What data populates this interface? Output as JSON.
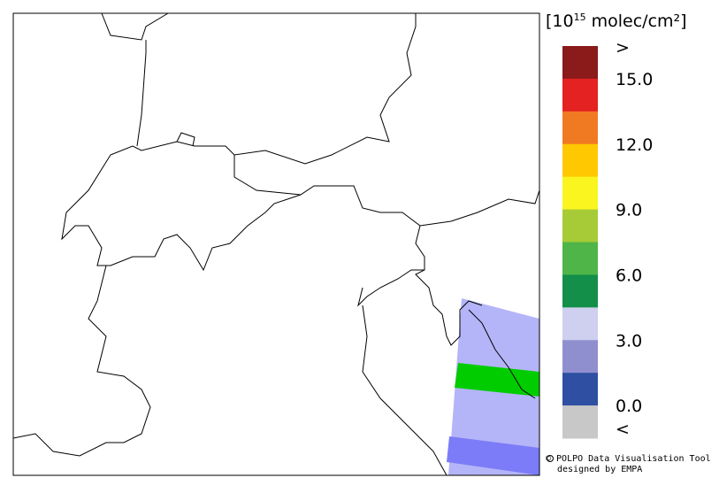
{
  "colorbar": {
    "unit_prefix": "[10",
    "unit_exponent": "15",
    "unit_suffix": " molec/cm²]",
    "labels": [
      ">",
      "15.0",
      "12.0",
      "9.0",
      "6.0",
      "3.0",
      "0.0",
      "<"
    ],
    "colors": [
      "#8b1a1a",
      "#e42222",
      "#f07a22",
      "#ffc800",
      "#fbf51f",
      "#a6cb36",
      "#4fb548",
      "#138f4a",
      "#cfcff0",
      "#8f8fd0",
      "#2f50a2",
      "#c8c8c8"
    ]
  },
  "credits": {
    "line1": "© POLPO Data Visualisation Tool",
    "line2": "designed by EMPA"
  }
}
